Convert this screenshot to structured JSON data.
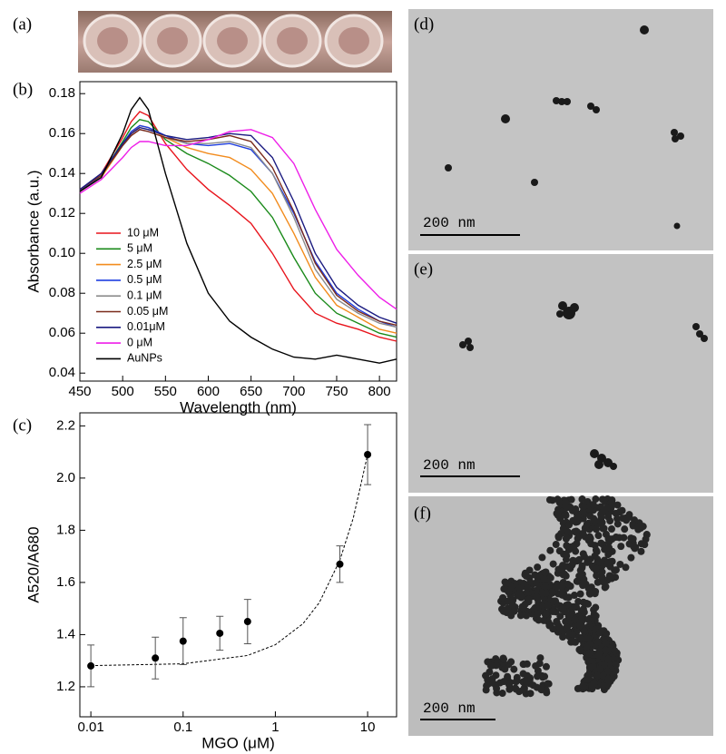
{
  "panels": {
    "a": "(a)",
    "b": "(b)",
    "c": "(c)",
    "d": "(d)",
    "e": "(e)",
    "f": "(f)"
  },
  "scale_bars": [
    "200 nm",
    "200 nm",
    "200 nm"
  ],
  "chart_data": [
    {
      "type": "line",
      "xlabel": "Wavelength (nm)",
      "ylabel": "Absorbance (a.u.)",
      "x": [
        450,
        475,
        500,
        510,
        520,
        530,
        550,
        575,
        600,
        625,
        650,
        675,
        700,
        725,
        750,
        775,
        800,
        820
      ],
      "series": [
        {
          "name": "10 μM",
          "color": "#e8141c",
          "values": [
            0.131,
            0.14,
            0.158,
            0.166,
            0.171,
            0.169,
            0.155,
            0.142,
            0.132,
            0.124,
            0.115,
            0.1,
            0.082,
            0.07,
            0.065,
            0.062,
            0.058,
            0.056
          ]
        },
        {
          "name": "5 μM",
          "color": "#1a8a1a",
          "values": [
            0.131,
            0.139,
            0.156,
            0.163,
            0.167,
            0.166,
            0.157,
            0.15,
            0.145,
            0.139,
            0.131,
            0.118,
            0.098,
            0.08,
            0.07,
            0.065,
            0.06,
            0.058
          ]
        },
        {
          "name": "2.5 μM",
          "color": "#f28c1e",
          "values": [
            0.131,
            0.138,
            0.154,
            0.16,
            0.164,
            0.163,
            0.158,
            0.153,
            0.15,
            0.148,
            0.142,
            0.13,
            0.11,
            0.088,
            0.074,
            0.068,
            0.062,
            0.06
          ]
        },
        {
          "name": "0.5 μM",
          "color": "#1f3fe0",
          "values": [
            0.131,
            0.139,
            0.155,
            0.161,
            0.164,
            0.163,
            0.159,
            0.155,
            0.154,
            0.155,
            0.152,
            0.14,
            0.12,
            0.096,
            0.08,
            0.072,
            0.066,
            0.063
          ]
        },
        {
          "name": "0.1 μM",
          "color": "#8c8c8c",
          "values": [
            0.132,
            0.139,
            0.154,
            0.159,
            0.162,
            0.161,
            0.158,
            0.155,
            0.155,
            0.156,
            0.153,
            0.14,
            0.118,
            0.092,
            0.077,
            0.07,
            0.065,
            0.063
          ]
        },
        {
          "name": "0.05 μM",
          "color": "#7a2a1a",
          "values": [
            0.132,
            0.139,
            0.154,
            0.159,
            0.162,
            0.161,
            0.158,
            0.156,
            0.157,
            0.159,
            0.156,
            0.143,
            0.121,
            0.095,
            0.079,
            0.071,
            0.066,
            0.064
          ]
        },
        {
          "name": "0.01μM",
          "color": "#1a1a80",
          "values": [
            0.132,
            0.14,
            0.155,
            0.16,
            0.163,
            0.162,
            0.159,
            0.157,
            0.158,
            0.16,
            0.159,
            0.148,
            0.126,
            0.1,
            0.083,
            0.074,
            0.068,
            0.065
          ]
        },
        {
          "name": "0 μM",
          "color": "#ee1ee8",
          "values": [
            0.13,
            0.137,
            0.148,
            0.153,
            0.156,
            0.156,
            0.154,
            0.154,
            0.157,
            0.161,
            0.162,
            0.158,
            0.145,
            0.122,
            0.102,
            0.089,
            0.078,
            0.072
          ]
        },
        {
          "name": "AuNPs",
          "color": "#000000",
          "values": [
            0.131,
            0.138,
            0.16,
            0.172,
            0.178,
            0.172,
            0.14,
            0.105,
            0.08,
            0.066,
            0.058,
            0.052,
            0.048,
            0.047,
            0.049,
            0.047,
            0.045,
            0.047
          ]
        }
      ],
      "xlim": [
        450,
        820
      ],
      "ylim": [
        0.036,
        0.186
      ],
      "xticks": [
        450,
        500,
        550,
        600,
        650,
        700,
        750,
        800
      ],
      "yticks": [
        0.04,
        0.06,
        0.08,
        {
          "value": 0.1,
          "label": "0.10"
        },
        0.12,
        0.14,
        0.16,
        0.18
      ],
      "legend": "lower left"
    },
    {
      "type": "scatter",
      "xlabel": "MGO (μM)",
      "ylabel": "A520/A680",
      "log_x": true,
      "x": [
        0.01,
        0.05,
        0.1,
        0.25,
        0.5,
        5,
        10
      ],
      "values": [
        1.28,
        1.31,
        1.375,
        1.405,
        1.45,
        1.67,
        2.09
      ],
      "errors": [
        0.08,
        0.08,
        0.09,
        0.065,
        0.085,
        0.07,
        0.115
      ],
      "fit": {
        "x": [
          0.01,
          0.1,
          0.5,
          1,
          2,
          3,
          5,
          7,
          10
        ],
        "values": [
          1.281,
          1.288,
          1.32,
          1.361,
          1.442,
          1.523,
          1.685,
          1.847,
          2.09
        ]
      },
      "color": "#000000",
      "xlim": [
        0.0076,
        20.6
      ],
      "ylim": [
        1.085,
        2.25
      ],
      "xticks": [
        0.01,
        0.1,
        1,
        10
      ],
      "yticks": [
        1.2,
        1.4,
        1.6,
        1.8,
        {
          "value": 2,
          "label": "2.0"
        },
        2.2
      ]
    }
  ]
}
